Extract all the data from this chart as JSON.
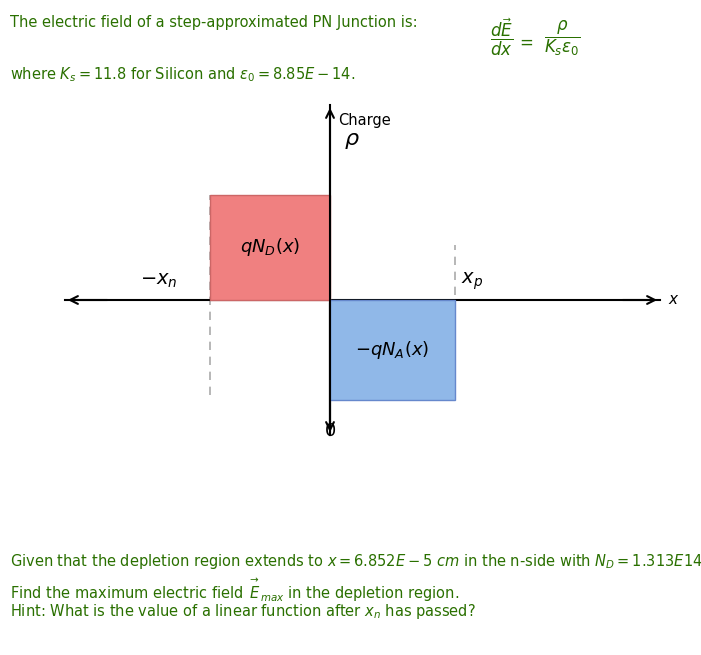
{
  "title_text": "The electric field of a step-approximated PN Junction is:",
  "text_color": "#2a7000",
  "where_text1": "where $K_s = 11.8$ for Silicon and $\\epsilon_0 = 8.85E - 14$.",
  "pink_color": "#f08080",
  "blue_color": "#90b8e8",
  "pink_edge": "#cc6666",
  "blue_edge": "#6688cc",
  "dashed_color": "#aaaaaa",
  "bottom_line1": "Given that the depletion region extends to $x = 6.852E-5\\ cm$ in the n-side with $N_D = 1.313E14$.",
  "bottom_line2": "Find the maximum electric field $\\overset{\\rightarrow}{E}_{max}$ in the depletion region.",
  "bottom_line3": "Hint: What is the value of a linear function after $x_n$ has passed?",
  "fig_width": 7.01,
  "fig_height": 6.55,
  "dpi": 100
}
